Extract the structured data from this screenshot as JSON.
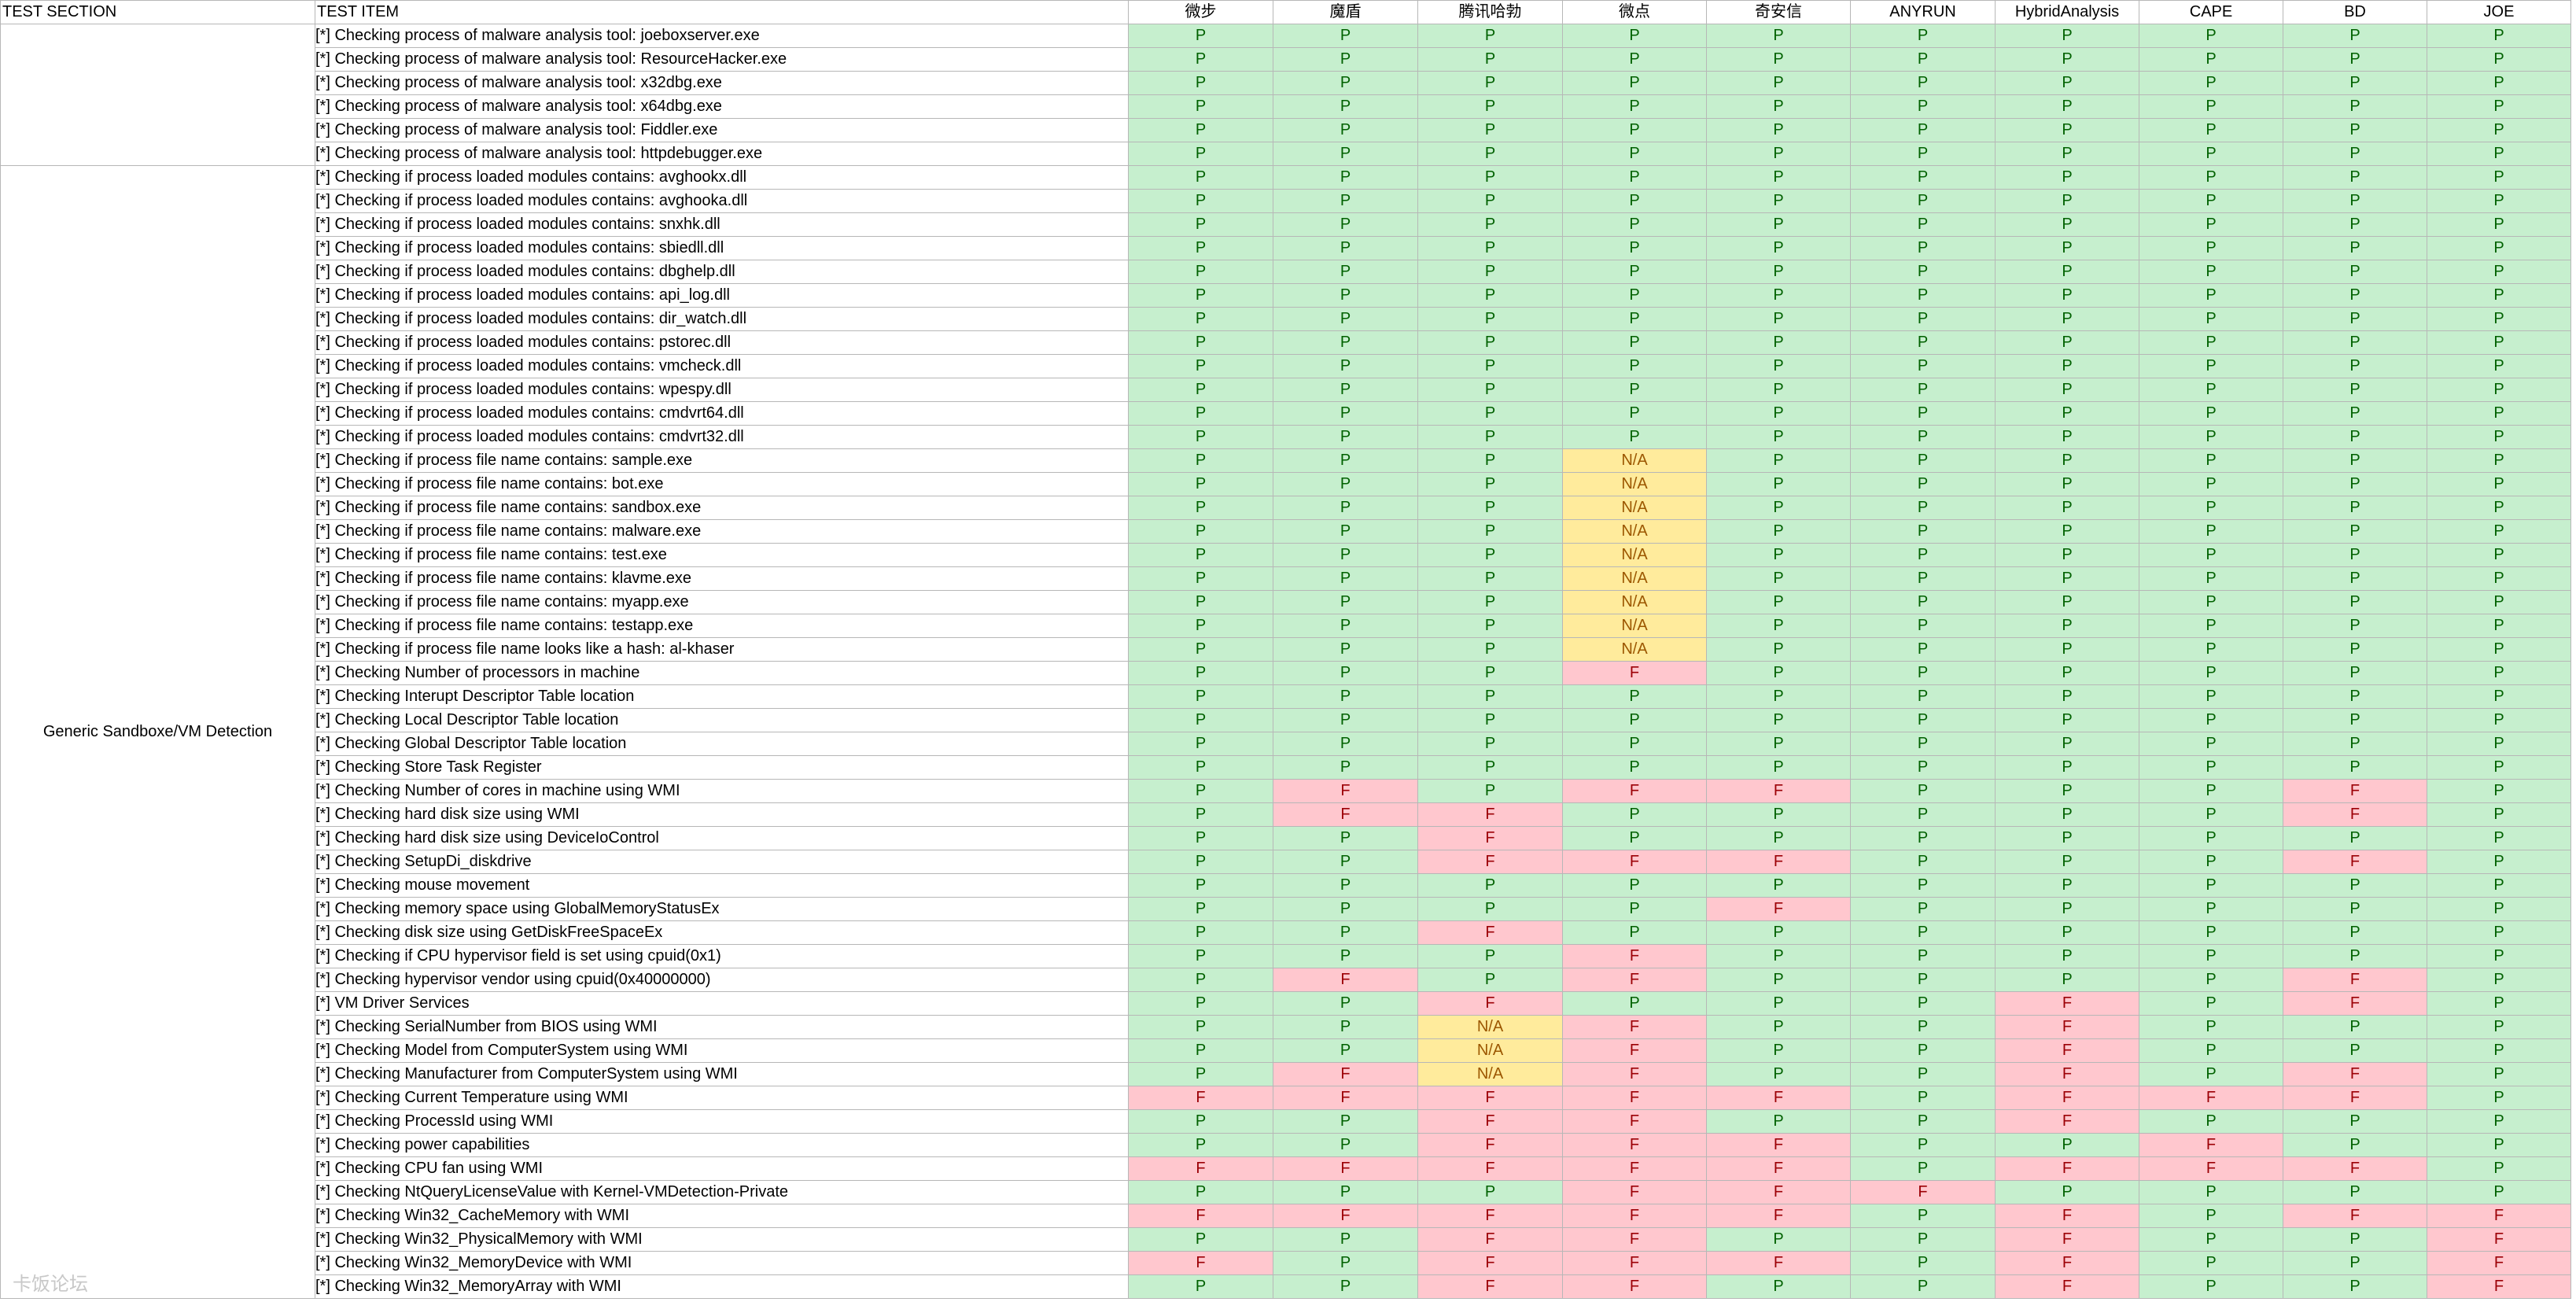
{
  "headers": {
    "section": "TEST SECTION",
    "item": "TEST ITEM",
    "vendors": [
      "微步",
      "魔盾",
      "腾讯哈勃",
      "微点",
      "奇安信",
      "ANYRUN",
      "HybridAnalysis",
      "CAPE",
      "BD",
      "JOE"
    ]
  },
  "groups": [
    {
      "section": "",
      "rows": [
        {
          "item": "[*] Checking process of malware analysis tool: joeboxserver.exe",
          "results": [
            "P",
            "P",
            "P",
            "P",
            "P",
            "P",
            "P",
            "P",
            "P",
            "P"
          ]
        },
        {
          "item": "[*] Checking process of malware analysis tool: ResourceHacker.exe",
          "results": [
            "P",
            "P",
            "P",
            "P",
            "P",
            "P",
            "P",
            "P",
            "P",
            "P"
          ]
        },
        {
          "item": "[*] Checking process of malware analysis tool: x32dbg.exe",
          "results": [
            "P",
            "P",
            "P",
            "P",
            "P",
            "P",
            "P",
            "P",
            "P",
            "P"
          ]
        },
        {
          "item": "[*] Checking process of malware analysis tool: x64dbg.exe",
          "results": [
            "P",
            "P",
            "P",
            "P",
            "P",
            "P",
            "P",
            "P",
            "P",
            "P"
          ]
        },
        {
          "item": "[*] Checking process of malware analysis tool: Fiddler.exe",
          "results": [
            "P",
            "P",
            "P",
            "P",
            "P",
            "P",
            "P",
            "P",
            "P",
            "P"
          ]
        },
        {
          "item": "[*] Checking process of malware analysis tool: httpdebugger.exe",
          "results": [
            "P",
            "P",
            "P",
            "P",
            "P",
            "P",
            "P",
            "P",
            "P",
            "P"
          ]
        }
      ]
    },
    {
      "section": "Generic Sandboxe/VM Detection",
      "rows": [
        {
          "item": "[*] Checking if process loaded modules contains: avghookx.dll",
          "results": [
            "P",
            "P",
            "P",
            "P",
            "P",
            "P",
            "P",
            "P",
            "P",
            "P"
          ]
        },
        {
          "item": "[*] Checking if process loaded modules contains: avghooka.dll",
          "results": [
            "P",
            "P",
            "P",
            "P",
            "P",
            "P",
            "P",
            "P",
            "P",
            "P"
          ]
        },
        {
          "item": "[*] Checking if process loaded modules contains: snxhk.dll",
          "results": [
            "P",
            "P",
            "P",
            "P",
            "P",
            "P",
            "P",
            "P",
            "P",
            "P"
          ]
        },
        {
          "item": "[*] Checking if process loaded modules contains: sbiedll.dll",
          "results": [
            "P",
            "P",
            "P",
            "P",
            "P",
            "P",
            "P",
            "P",
            "P",
            "P"
          ]
        },
        {
          "item": "[*] Checking if process loaded modules contains: dbghelp.dll",
          "results": [
            "P",
            "P",
            "P",
            "P",
            "P",
            "P",
            "P",
            "P",
            "P",
            "P"
          ]
        },
        {
          "item": "[*] Checking if process loaded modules contains: api_log.dll",
          "results": [
            "P",
            "P",
            "P",
            "P",
            "P",
            "P",
            "P",
            "P",
            "P",
            "P"
          ]
        },
        {
          "item": "[*] Checking if process loaded modules contains: dir_watch.dll",
          "results": [
            "P",
            "P",
            "P",
            "P",
            "P",
            "P",
            "P",
            "P",
            "P",
            "P"
          ]
        },
        {
          "item": "[*] Checking if process loaded modules contains: pstorec.dll",
          "results": [
            "P",
            "P",
            "P",
            "P",
            "P",
            "P",
            "P",
            "P",
            "P",
            "P"
          ]
        },
        {
          "item": "[*] Checking if process loaded modules contains: vmcheck.dll",
          "results": [
            "P",
            "P",
            "P",
            "P",
            "P",
            "P",
            "P",
            "P",
            "P",
            "P"
          ]
        },
        {
          "item": "[*] Checking if process loaded modules contains: wpespy.dll",
          "results": [
            "P",
            "P",
            "P",
            "P",
            "P",
            "P",
            "P",
            "P",
            "P",
            "P"
          ]
        },
        {
          "item": "[*] Checking if process loaded modules contains: cmdvrt64.dll",
          "results": [
            "P",
            "P",
            "P",
            "P",
            "P",
            "P",
            "P",
            "P",
            "P",
            "P"
          ]
        },
        {
          "item": "[*] Checking if process loaded modules contains: cmdvrt32.dll",
          "results": [
            "P",
            "P",
            "P",
            "P",
            "P",
            "P",
            "P",
            "P",
            "P",
            "P"
          ]
        },
        {
          "item": "[*] Checking if process file name contains: sample.exe",
          "results": [
            "P",
            "P",
            "P",
            "N/A",
            "P",
            "P",
            "P",
            "P",
            "P",
            "P"
          ]
        },
        {
          "item": "[*] Checking if process file name contains: bot.exe",
          "results": [
            "P",
            "P",
            "P",
            "N/A",
            "P",
            "P",
            "P",
            "P",
            "P",
            "P"
          ]
        },
        {
          "item": "[*] Checking if process file name contains: sandbox.exe",
          "results": [
            "P",
            "P",
            "P",
            "N/A",
            "P",
            "P",
            "P",
            "P",
            "P",
            "P"
          ]
        },
        {
          "item": "[*] Checking if process file name contains: malware.exe",
          "results": [
            "P",
            "P",
            "P",
            "N/A",
            "P",
            "P",
            "P",
            "P",
            "P",
            "P"
          ]
        },
        {
          "item": "[*] Checking if process file name contains: test.exe",
          "results": [
            "P",
            "P",
            "P",
            "N/A",
            "P",
            "P",
            "P",
            "P",
            "P",
            "P"
          ]
        },
        {
          "item": "[*] Checking if process file name contains: klavme.exe",
          "results": [
            "P",
            "P",
            "P",
            "N/A",
            "P",
            "P",
            "P",
            "P",
            "P",
            "P"
          ]
        },
        {
          "item": "[*] Checking if process file name contains: myapp.exe",
          "results": [
            "P",
            "P",
            "P",
            "N/A",
            "P",
            "P",
            "P",
            "P",
            "P",
            "P"
          ]
        },
        {
          "item": "[*] Checking if process file name contains: testapp.exe",
          "results": [
            "P",
            "P",
            "P",
            "N/A",
            "P",
            "P",
            "P",
            "P",
            "P",
            "P"
          ]
        },
        {
          "item": "[*] Checking if process file name looks like a hash: al-khaser",
          "results": [
            "P",
            "P",
            "P",
            "N/A",
            "P",
            "P",
            "P",
            "P",
            "P",
            "P"
          ]
        },
        {
          "item": "[*] Checking Number of processors in machine",
          "results": [
            "P",
            "P",
            "P",
            "F",
            "P",
            "P",
            "P",
            "P",
            "P",
            "P"
          ]
        },
        {
          "item": "[*] Checking Interupt Descriptor Table location",
          "results": [
            "P",
            "P",
            "P",
            "P",
            "P",
            "P",
            "P",
            "P",
            "P",
            "P"
          ]
        },
        {
          "item": "[*] Checking Local Descriptor Table location",
          "results": [
            "P",
            "P",
            "P",
            "P",
            "P",
            "P",
            "P",
            "P",
            "P",
            "P"
          ]
        },
        {
          "item": "[*] Checking Global Descriptor Table location",
          "results": [
            "P",
            "P",
            "P",
            "P",
            "P",
            "P",
            "P",
            "P",
            "P",
            "P"
          ]
        },
        {
          "item": "[*] Checking Store Task Register",
          "results": [
            "P",
            "P",
            "P",
            "P",
            "P",
            "P",
            "P",
            "P",
            "P",
            "P"
          ]
        },
        {
          "item": "[*] Checking Number of cores in machine using WMI",
          "results": [
            "P",
            "F",
            "P",
            "F",
            "F",
            "P",
            "P",
            "P",
            "F",
            "P"
          ]
        },
        {
          "item": "[*] Checking hard disk size using WMI",
          "results": [
            "P",
            "F",
            "F",
            "P",
            "P",
            "P",
            "P",
            "P",
            "F",
            "P"
          ]
        },
        {
          "item": "[*] Checking hard disk size using DeviceIoControl",
          "results": [
            "P",
            "P",
            "F",
            "P",
            "P",
            "P",
            "P",
            "P",
            "P",
            "P"
          ]
        },
        {
          "item": "[*] Checking SetupDi_diskdrive",
          "results": [
            "P",
            "P",
            "F",
            "F",
            "F",
            "P",
            "P",
            "P",
            "F",
            "P"
          ]
        },
        {
          "item": "[*] Checking mouse movement",
          "results": [
            "P",
            "P",
            "P",
            "P",
            "P",
            "P",
            "P",
            "P",
            "P",
            "P"
          ]
        },
        {
          "item": "[*] Checking memory space using GlobalMemoryStatusEx",
          "results": [
            "P",
            "P",
            "P",
            "P",
            "F",
            "P",
            "P",
            "P",
            "P",
            "P"
          ]
        },
        {
          "item": "[*] Checking disk size using GetDiskFreeSpaceEx",
          "results": [
            "P",
            "P",
            "F",
            "P",
            "P",
            "P",
            "P",
            "P",
            "P",
            "P"
          ]
        },
        {
          "item": "[*] Checking if CPU hypervisor field is set using cpuid(0x1)",
          "results": [
            "P",
            "P",
            "P",
            "F",
            "P",
            "P",
            "P",
            "P",
            "P",
            "P"
          ]
        },
        {
          "item": "[*] Checking hypervisor vendor using cpuid(0x40000000)",
          "results": [
            "P",
            "F",
            "P",
            "F",
            "P",
            "P",
            "P",
            "P",
            "F",
            "P"
          ]
        },
        {
          "item": "[*] VM Driver Services",
          "results": [
            "P",
            "P",
            "F",
            "P",
            "P",
            "P",
            "F",
            "P",
            "F",
            "P"
          ]
        },
        {
          "item": "[*] Checking SerialNumber from BIOS using WMI",
          "results": [
            "P",
            "P",
            "N/A",
            "F",
            "P",
            "P",
            "F",
            "P",
            "P",
            "P"
          ]
        },
        {
          "item": "[*] Checking Model from ComputerSystem using WMI",
          "results": [
            "P",
            "P",
            "N/A",
            "F",
            "P",
            "P",
            "F",
            "P",
            "P",
            "P"
          ]
        },
        {
          "item": "[*] Checking Manufacturer from ComputerSystem using WMI",
          "results": [
            "P",
            "F",
            "N/A",
            "F",
            "P",
            "P",
            "F",
            "P",
            "F",
            "P"
          ]
        },
        {
          "item": "[*] Checking Current Temperature using WMI",
          "results": [
            "F",
            "F",
            "F",
            "F",
            "F",
            "P",
            "F",
            "F",
            "F",
            "P"
          ]
        },
        {
          "item": "[*] Checking ProcessId using WMI",
          "results": [
            "P",
            "P",
            "F",
            "F",
            "P",
            "P",
            "F",
            "P",
            "P",
            "P"
          ]
        },
        {
          "item": "[*] Checking power capabilities",
          "results": [
            "P",
            "P",
            "F",
            "F",
            "F",
            "P",
            "P",
            "F",
            "P",
            "P"
          ]
        },
        {
          "item": "[*] Checking CPU fan using WMI",
          "results": [
            "F",
            "F",
            "F",
            "F",
            "F",
            "P",
            "F",
            "F",
            "F",
            "P"
          ]
        },
        {
          "item": "[*] Checking NtQueryLicenseValue with Kernel-VMDetection-Private",
          "results": [
            "P",
            "P",
            "P",
            "F",
            "F",
            "F",
            "P",
            "P",
            "P",
            "P"
          ]
        },
        {
          "item": "[*] Checking Win32_CacheMemory with WMI",
          "results": [
            "F",
            "F",
            "F",
            "F",
            "F",
            "P",
            "F",
            "P",
            "F",
            "F"
          ]
        },
        {
          "item": "[*] Checking Win32_PhysicalMemory with WMI",
          "results": [
            "P",
            "P",
            "F",
            "F",
            "P",
            "P",
            "F",
            "P",
            "P",
            "F"
          ]
        },
        {
          "item": "[*] Checking Win32_MemoryDevice with WMI",
          "results": [
            "F",
            "P",
            "F",
            "F",
            "F",
            "P",
            "F",
            "P",
            "P",
            "F"
          ]
        },
        {
          "item": "[*] Checking Win32_MemoryArray with WMI",
          "results": [
            "P",
            "P",
            "F",
            "F",
            "P",
            "P",
            "F",
            "P",
            "P",
            "F"
          ]
        }
      ]
    }
  ],
  "colors": {
    "pass_bg": "#c6efce",
    "pass_fg": "#006100",
    "fail_bg": "#ffc7ce",
    "fail_fg": "#9c0006",
    "na_bg": "#ffeb9c",
    "na_fg": "#9c5700"
  },
  "watermark": "卡饭论坛"
}
